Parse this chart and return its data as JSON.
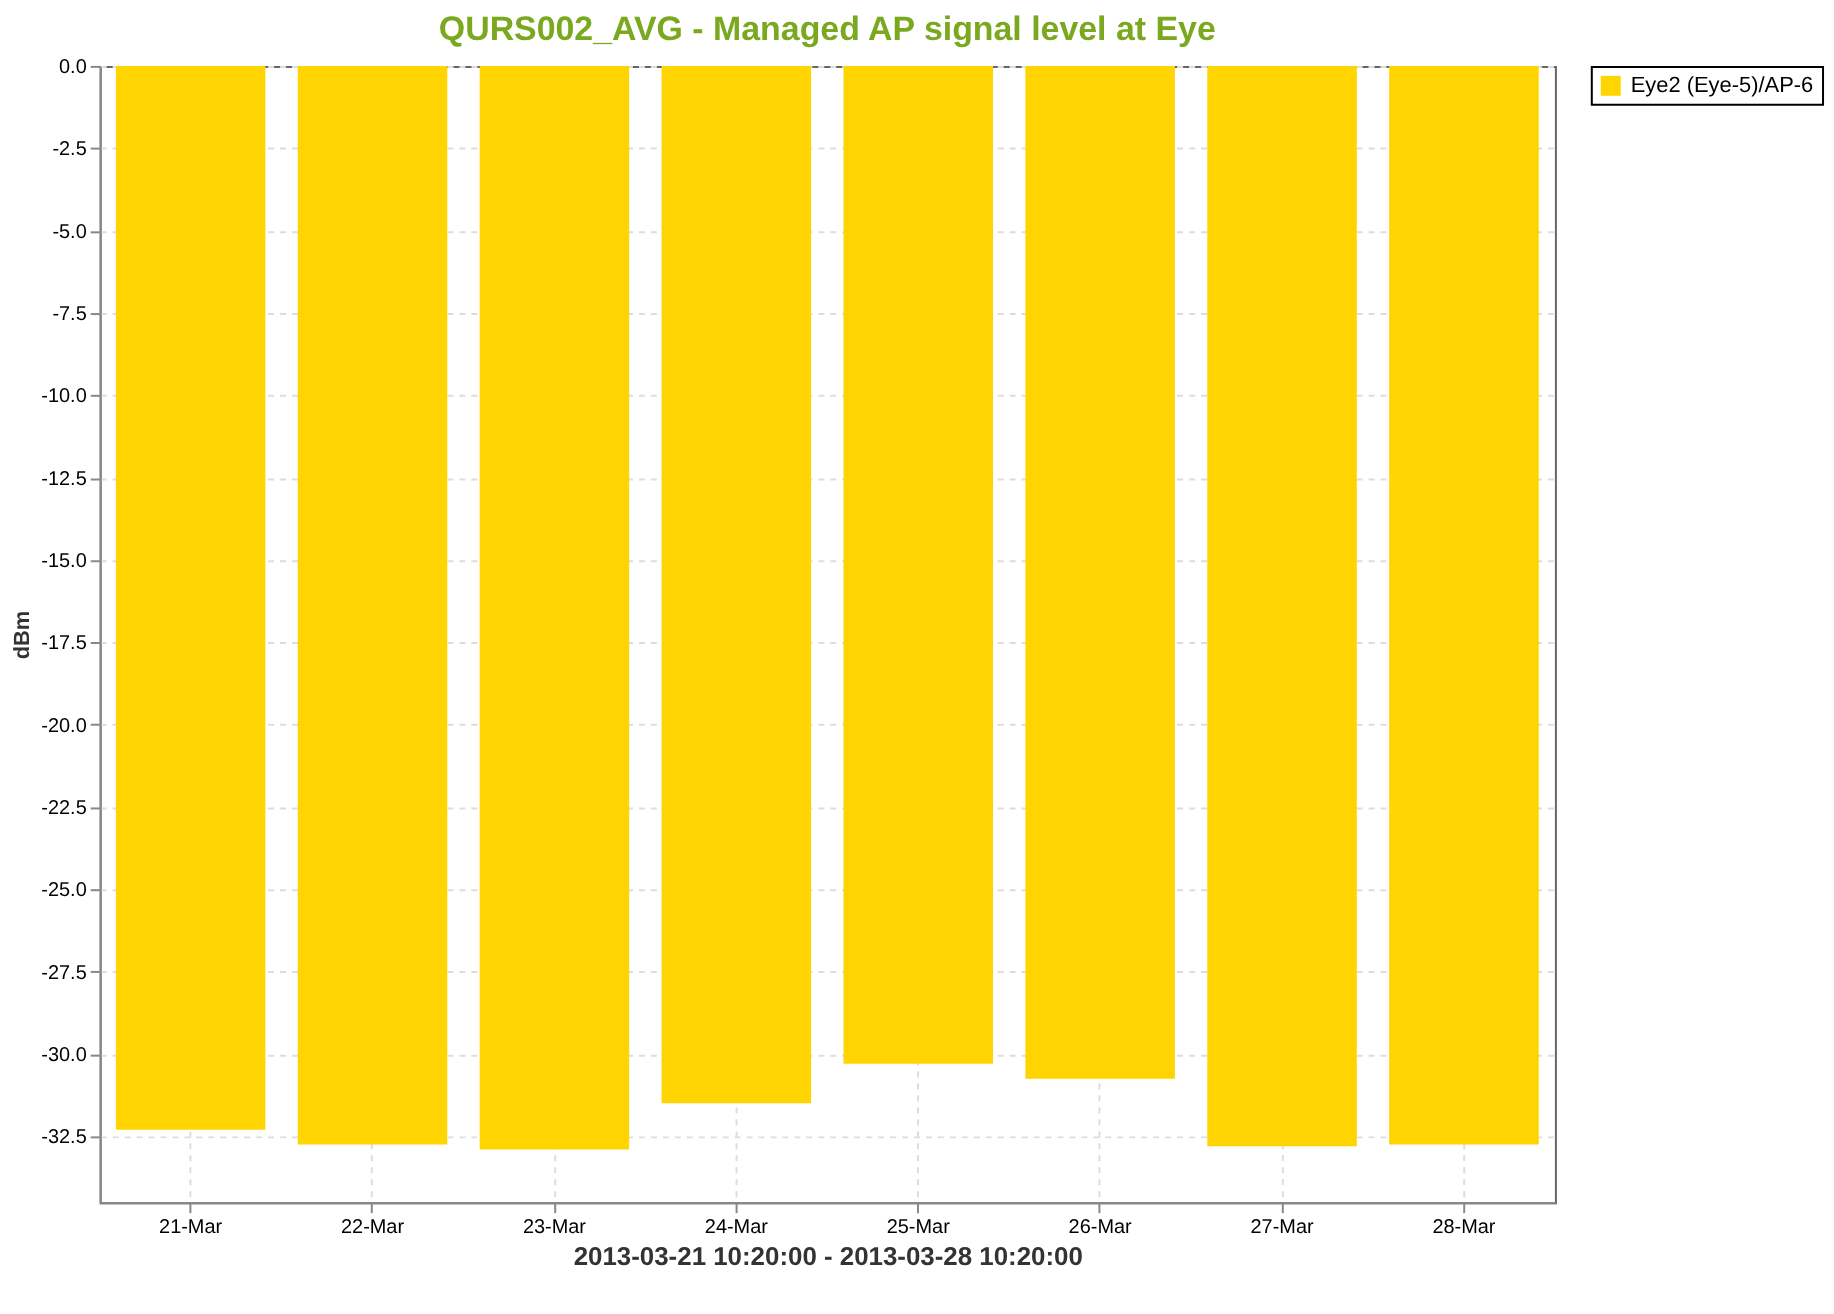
{
  "chart_data": {
    "type": "bar",
    "title": "QURS002_AVG - Managed AP signal level at Eye",
    "xlabel": "2013-03-21 10:20:00 - 2013-03-28 10:20:00",
    "ylabel": "dBm",
    "categories": [
      "21-Mar",
      "22-Mar",
      "23-Mar",
      "24-Mar",
      "25-Mar",
      "26-Mar",
      "27-Mar",
      "28-Mar"
    ],
    "series": [
      {
        "name": "Eye2 (Eye-5)/AP-6",
        "color": "#ffd400",
        "values": [
          -32.3,
          -32.75,
          -32.9,
          -31.5,
          -30.3,
          -30.75,
          -32.8,
          -32.75
        ]
      }
    ],
    "ylim": [
      -34.5,
      0
    ],
    "yticks": [
      {
        "value": 0,
        "label": "0.0"
      },
      -2.5,
      {
        "value": -5,
        "label": "-5.0"
      },
      -7.5,
      {
        "value": -10,
        "label": "-10.0"
      },
      -12.5,
      {
        "value": -15,
        "label": "-15.0"
      },
      -17.5,
      {
        "value": -20,
        "label": "-20.0"
      },
      -22.5,
      {
        "value": -25,
        "label": "-25.0"
      },
      -27.5,
      {
        "value": -30,
        "label": "-30.0"
      },
      -32.5
    ],
    "grid": true,
    "legend": "right"
  }
}
